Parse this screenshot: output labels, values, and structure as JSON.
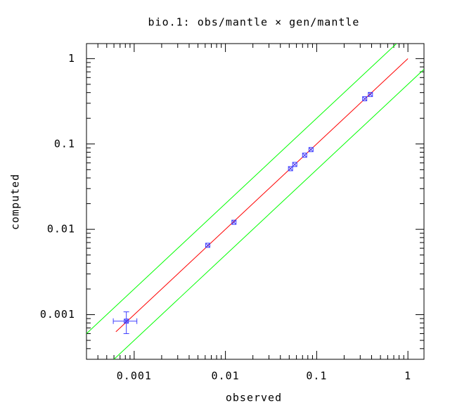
{
  "chart_data": {
    "type": "scatter",
    "title": "bio.1: obs/mantle × gen/mantle",
    "x_label": "observed",
    "y_label": "computed",
    "log_x": true,
    "log_y": true,
    "xlim": [
      0.0003,
      1.5
    ],
    "ylim": [
      0.0003,
      1.5
    ],
    "xticks": [
      0.001,
      0.01,
      0.1,
      1
    ],
    "yticks": [
      0.001,
      0.01,
      0.1,
      1
    ],
    "points": {
      "color": "#4040ff",
      "x": [
        0.00082,
        0.0064,
        0.0124,
        0.0517,
        0.0575,
        0.0738,
        0.0867,
        0.336,
        0.388
      ],
      "y": [
        0.00084,
        0.0065,
        0.0121,
        0.0514,
        0.0575,
        0.0738,
        0.0859,
        0.339,
        0.38
      ],
      "x_low": [
        0.00059,
        null,
        null,
        null,
        null,
        null,
        null,
        null,
        null
      ],
      "x_high": [
        0.00107,
        null,
        null,
        null,
        null,
        null,
        null,
        null,
        null
      ],
      "y_low": [
        0.0006,
        null,
        null,
        null,
        null,
        null,
        null,
        null,
        null
      ],
      "y_high": [
        0.00108,
        null,
        null,
        null,
        null,
        null,
        null,
        null,
        null
      ]
    },
    "lines": [
      {
        "color": "#ff0000",
        "x": [
          0.00063,
          1
        ],
        "y": [
          0.00063,
          1
        ]
      },
      {
        "color": "#00ff00",
        "x": [
          0.0003,
          0.75
        ],
        "y": [
          0.0006,
          1.5
        ]
      },
      {
        "color": "#00ff00",
        "x": [
          0.0006,
          1.5
        ],
        "y": [
          0.0003,
          0.75
        ]
      }
    ]
  }
}
